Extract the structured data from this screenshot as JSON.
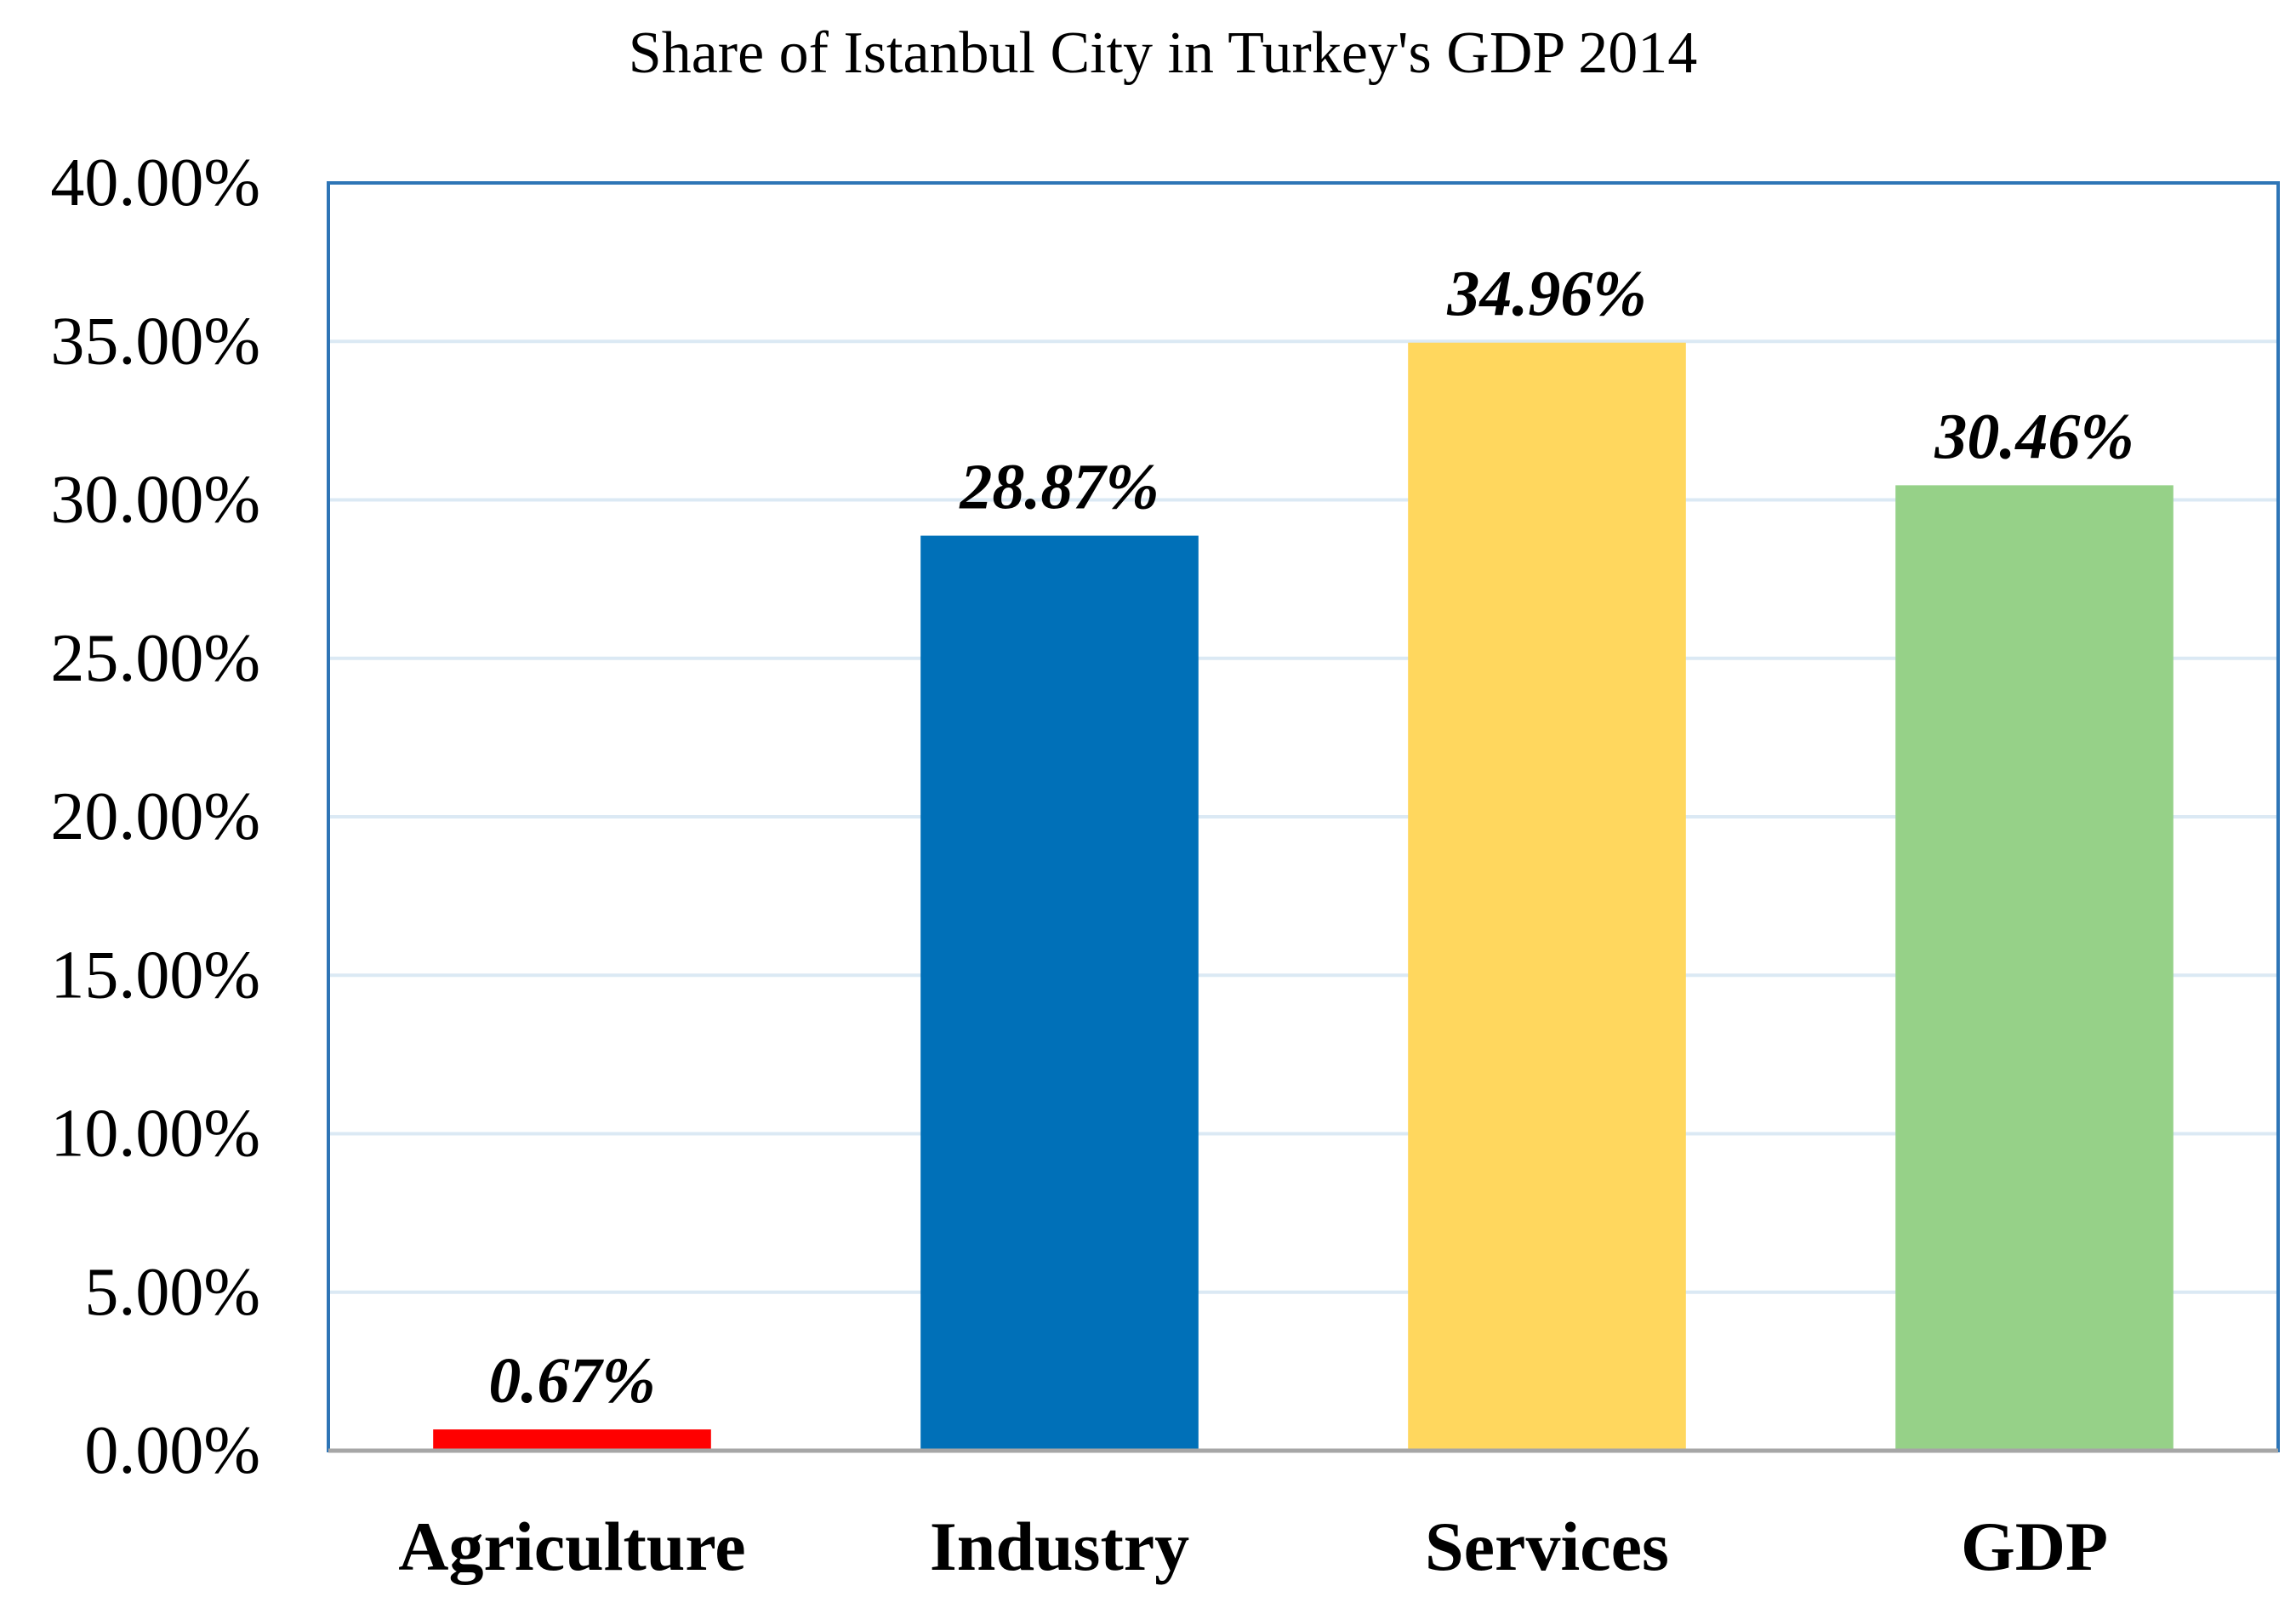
{
  "chart_data": {
    "type": "bar",
    "title": "Share of Istanbul City in Turkey's GDP 2014",
    "categories": [
      "Agriculture",
      "Industry",
      "Services",
      "GDP"
    ],
    "values": [
      0.67,
      28.87,
      34.96,
      30.46
    ],
    "data_labels": [
      "0.67%",
      "28.87%",
      "34.96%",
      "30.46%"
    ],
    "bar_colors": [
      "#ff0000",
      "#0070b8",
      "#ffd75e",
      "#96d188"
    ],
    "ylim": [
      0,
      40
    ],
    "yticks": [
      {
        "value": 0,
        "label": "0.00%"
      },
      {
        "value": 5,
        "label": "5.00%"
      },
      {
        "value": 10,
        "label": "10.00%"
      },
      {
        "value": 15,
        "label": "15.00%"
      },
      {
        "value": 20,
        "label": "20.00%"
      },
      {
        "value": 25,
        "label": "25.00%"
      },
      {
        "value": 30,
        "label": "30.00%"
      },
      {
        "value": 35,
        "label": "35.00%"
      },
      {
        "value": 40,
        "label": "40.00%"
      }
    ],
    "xlabel": "",
    "ylabel": "",
    "grid": true,
    "legend": "none",
    "colors": {
      "gridline": "#dbe9f4",
      "plot_border": "#2e75b6",
      "axis_line": "#a6a6a6"
    }
  }
}
